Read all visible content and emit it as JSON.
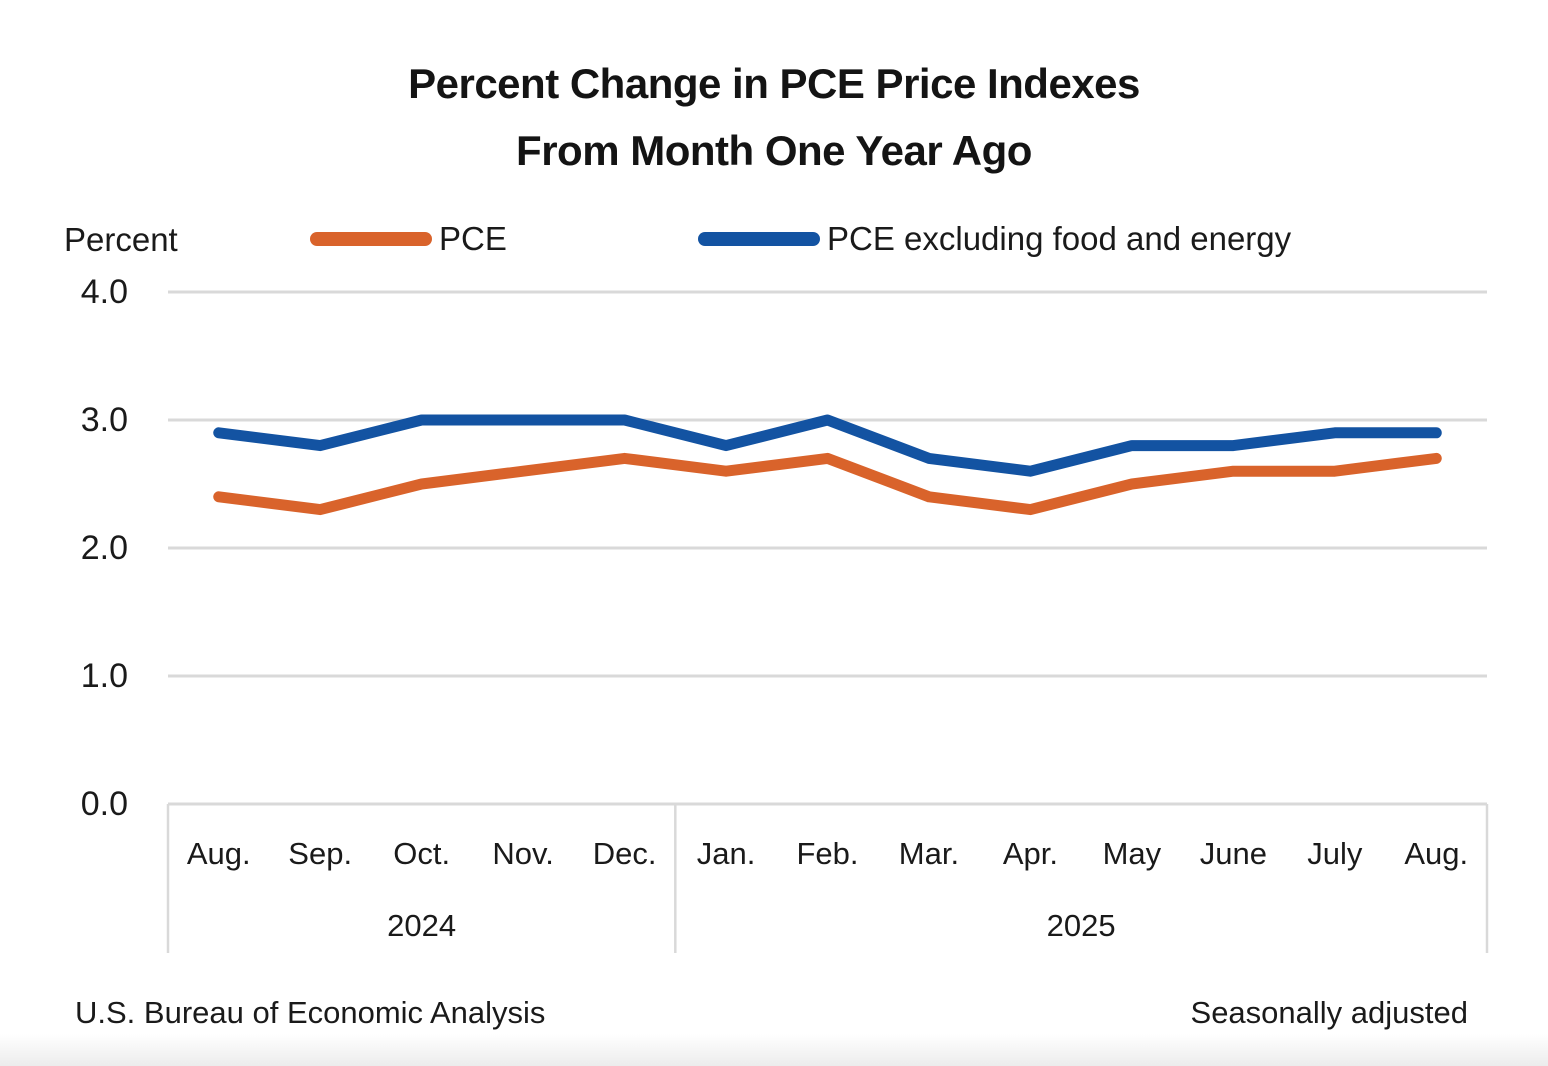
{
  "header": {
    "title_line1": "Percent Change in PCE Price Indexes",
    "title_line2": "From Month One Year Ago"
  },
  "chart_data": {
    "type": "line",
    "title": "Percent Change in PCE Price Indexes From Month One Year Ago",
    "ylabel": "Percent",
    "xlabel": "",
    "ylim": [
      0.0,
      4.0
    ],
    "y_ticks": [
      "0.0",
      "1.0",
      "2.0",
      "3.0",
      "4.0"
    ],
    "grid": true,
    "legend_position": "top",
    "categories": [
      "Aug.",
      "Sep.",
      "Oct.",
      "Nov.",
      "Dec.",
      "Jan.",
      "Feb.",
      "Mar.",
      "Apr.",
      "May",
      "June",
      "July",
      "Aug."
    ],
    "year_groups": [
      {
        "label": "2024",
        "span": 5
      },
      {
        "label": "2025",
        "span": 8
      }
    ],
    "series": [
      {
        "name": "PCE",
        "color": "#D9632B",
        "values": [
          2.4,
          2.3,
          2.5,
          2.6,
          2.7,
          2.6,
          2.7,
          2.4,
          2.3,
          2.5,
          2.6,
          2.6,
          2.7
        ]
      },
      {
        "name": "PCE excluding food and energy",
        "color": "#1353A2",
        "values": [
          2.9,
          2.8,
          3.0,
          3.0,
          3.0,
          2.8,
          3.0,
          2.7,
          2.6,
          2.8,
          2.8,
          2.9,
          2.9
        ]
      }
    ],
    "gridline_color": "#D9D9D9",
    "source_note": "U.S. Bureau of Economic Analysis",
    "adjustment_note": "Seasonally adjusted"
  }
}
